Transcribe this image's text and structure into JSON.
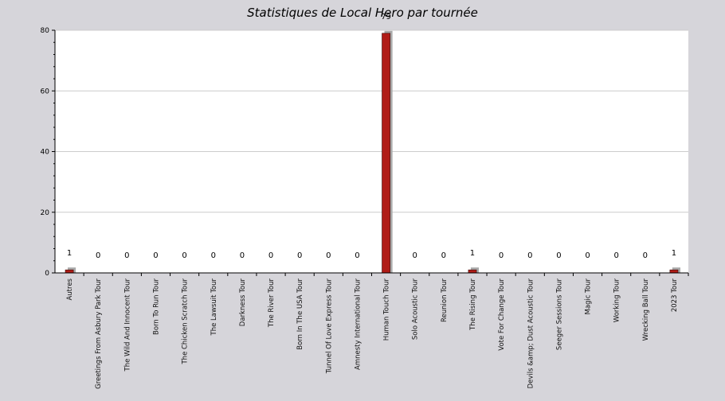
{
  "chart_data": {
    "type": "bar",
    "title": "Statistiques de Local Hero par tournée",
    "xlabel": "",
    "ylabel": "",
    "ylim": [
      0,
      80
    ],
    "yticks": [
      0,
      20,
      40,
      60,
      80
    ],
    "grid": true,
    "legend": "none",
    "categories": [
      "Autres",
      "Greetings From Asbury Park Tour",
      "The Wild And Innocent Tour",
      "Born To Run Tour",
      "The Chicken Scratch Tour",
      "The Lawsuit Tour",
      "Darkness Tour",
      "The River Tour",
      "Born In The USA Tour",
      "Tunnel Of Love Express Tour",
      "Amnesty International Tour",
      "Human Touch Tour",
      "Solo Acoustic Tour",
      "Reunion Tour",
      "The Rising Tour",
      "Vote For Change Tour",
      "Devils &amp; Dust Acoustic Tour",
      "Seeger Sessions Tour",
      "Magic Tour",
      "Working Tour",
      "Wrecking Ball Tour",
      "2023 Tour"
    ],
    "values": [
      1,
      0,
      0,
      0,
      0,
      0,
      0,
      0,
      0,
      0,
      0,
      79,
      0,
      0,
      1,
      0,
      0,
      0,
      0,
      0,
      0,
      1
    ],
    "colors": {
      "background": "#d6d5da",
      "plot_background": "#ffffff",
      "bar": "#b01c17",
      "bar_shadow": "#a9a9a9",
      "grid": "#cccccc",
      "axis": "#000000"
    }
  }
}
